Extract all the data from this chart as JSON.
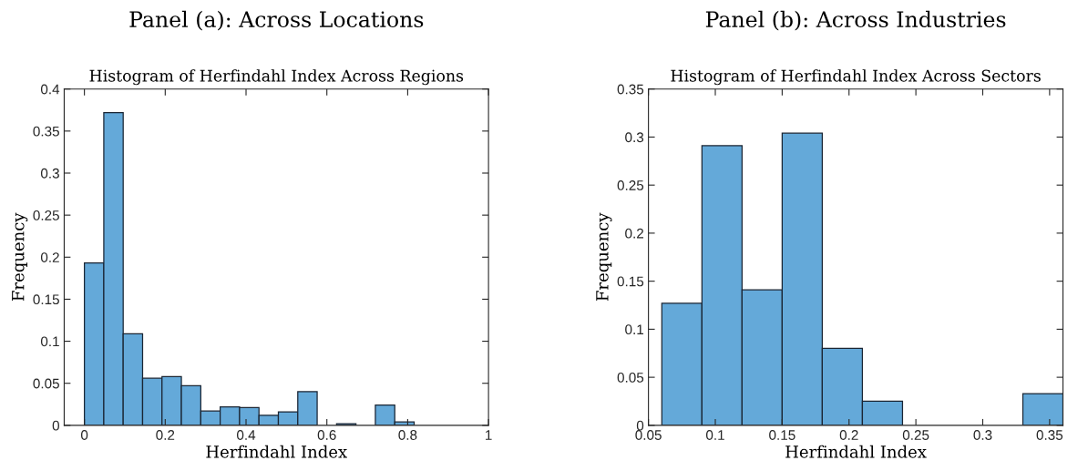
{
  "chart_data": [
    {
      "type": "histogram",
      "title": "Panel (a): Across Locations",
      "subtitle": "Histogram of Herfindahl Index Across Regions",
      "xlabel": "Herfindahl Index",
      "ylabel": "Frequency",
      "color": "#64a9d9",
      "bins": [
        0,
        0.048,
        0.096,
        0.144,
        0.192,
        0.24,
        0.288,
        0.336,
        0.384,
        0.432,
        0.48,
        0.528,
        0.576,
        0.624,
        0.672,
        0.72,
        0.768,
        0.816,
        0.864,
        0.912,
        0.96
      ],
      "values": [
        0.193,
        0.372,
        0.109,
        0.056,
        0.058,
        0.047,
        0.017,
        0.022,
        0.021,
        0.012,
        0.016,
        0.04,
        0,
        0.002,
        null,
        0.024,
        0.004,
        null,
        null,
        null
      ],
      "xlim": [
        -0.05,
        1
      ],
      "xticks": [
        0,
        0.2,
        0.4,
        0.6,
        0.8,
        1
      ],
      "ylim": [
        0,
        0.4
      ],
      "yticks": [
        0,
        0.05,
        0.1,
        0.15,
        0.2,
        0.25,
        0.3,
        0.35,
        0.4
      ],
      "grid": false
    },
    {
      "type": "histogram",
      "title": "Panel (b): Across Industries",
      "subtitle": "Histogram of Herfindahl Index Across Sectors",
      "xlabel": "Herfindahl Index",
      "ylabel": "Frequency",
      "color": "#64a9d9",
      "bins": [
        0.06,
        0.09,
        0.12,
        0.15,
        0.18,
        0.21,
        0.24,
        0.27,
        0.3,
        0.33,
        0.36
      ],
      "values": [
        0.127,
        0.291,
        0.141,
        0.304,
        0.08,
        0.025,
        0,
        0,
        0,
        0.033
      ],
      "xlim": [
        0.05,
        0.36
      ],
      "xticks": [
        0.05,
        0.1,
        0.15,
        0.2,
        0.25,
        0.3,
        0.35
      ],
      "ylim": [
        0,
        0.35
      ],
      "yticks": [
        0,
        0.05,
        0.1,
        0.15,
        0.2,
        0.25,
        0.3,
        0.35
      ],
      "grid": false
    }
  ]
}
